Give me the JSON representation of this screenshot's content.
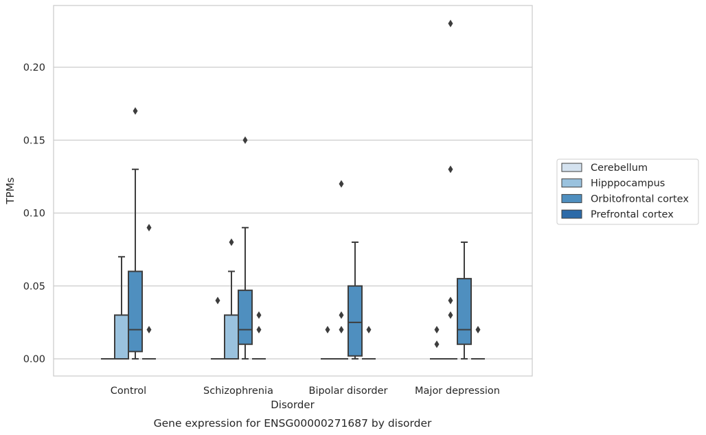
{
  "chart_data": {
    "type": "boxplot",
    "title": "",
    "caption": "Gene expression for ENSG00000271687 by disorder",
    "xlabel": "Disorder",
    "ylabel": "TPMs",
    "ylim": [
      -0.01,
      0.243
    ],
    "yticks": [
      0.0,
      0.05,
      0.1,
      0.15,
      0.2
    ],
    "ytick_labels": [
      "0.00",
      "0.05",
      "0.10",
      "0.15",
      "0.20"
    ],
    "grid": "horizontal",
    "legend_position": "right",
    "categories": [
      "Control",
      "Schizophrenia",
      "Bipolar disorder",
      "Major depression"
    ],
    "series": [
      {
        "name": "Cerebellum",
        "color": "#d4e2ef",
        "boxes": [
          {
            "min": 0,
            "q1": 0,
            "median": 0,
            "q3": 0,
            "max": 0,
            "fliers": []
          },
          {
            "min": 0,
            "q1": 0,
            "median": 0,
            "q3": 0,
            "max": 0,
            "fliers": [
              0.04
            ]
          },
          {
            "min": 0,
            "q1": 0,
            "median": 0,
            "q3": 0,
            "max": 0,
            "fliers": [
              0.02
            ]
          },
          {
            "min": 0,
            "q1": 0,
            "median": 0,
            "q3": 0,
            "max": 0,
            "fliers": [
              0.01,
              0.02
            ]
          }
        ]
      },
      {
        "name": "Hipppocampus",
        "color": "#9ac2de",
        "boxes": [
          {
            "min": 0,
            "q1": 0,
            "median": 0,
            "q3": 0.03,
            "max": 0.07,
            "fliers": []
          },
          {
            "min": 0,
            "q1": 0,
            "median": 0,
            "q3": 0.03,
            "max": 0.06,
            "fliers": [
              0.08
            ]
          },
          {
            "min": 0,
            "q1": 0,
            "median": 0,
            "q3": 0,
            "max": 0,
            "fliers": [
              0.02,
              0.03,
              0.12
            ]
          },
          {
            "min": 0,
            "q1": 0,
            "median": 0,
            "q3": 0,
            "max": 0,
            "fliers": [
              0.03,
              0.04,
              0.13,
              0.23
            ]
          }
        ]
      },
      {
        "name": "Orbitofrontal cortex",
        "color": "#4f8fbf",
        "boxes": [
          {
            "min": 0,
            "q1": 0.005,
            "median": 0.02,
            "q3": 0.06,
            "max": 0.13,
            "fliers": [
              0.17
            ]
          },
          {
            "min": 0,
            "q1": 0.01,
            "median": 0.02,
            "q3": 0.047,
            "max": 0.09,
            "fliers": [
              0.15
            ]
          },
          {
            "min": 0,
            "q1": 0.002,
            "median": 0.025,
            "q3": 0.05,
            "max": 0.08,
            "fliers": []
          },
          {
            "min": 0,
            "q1": 0.01,
            "median": 0.02,
            "q3": 0.055,
            "max": 0.08,
            "fliers": []
          }
        ]
      },
      {
        "name": "Prefrontal cortex",
        "color": "#2c6aa8",
        "boxes": [
          {
            "min": 0,
            "q1": 0,
            "median": 0,
            "q3": 0,
            "max": 0,
            "fliers": [
              0.02,
              0.09
            ]
          },
          {
            "min": 0,
            "q1": 0,
            "median": 0,
            "q3": 0,
            "max": 0,
            "fliers": [
              0.02,
              0.03
            ]
          },
          {
            "min": 0,
            "q1": 0,
            "median": 0,
            "q3": 0,
            "max": 0,
            "fliers": [
              0.02
            ]
          },
          {
            "min": 0,
            "q1": 0,
            "median": 0,
            "q3": 0,
            "max": 0,
            "fliers": [
              0.02
            ]
          }
        ]
      }
    ]
  }
}
